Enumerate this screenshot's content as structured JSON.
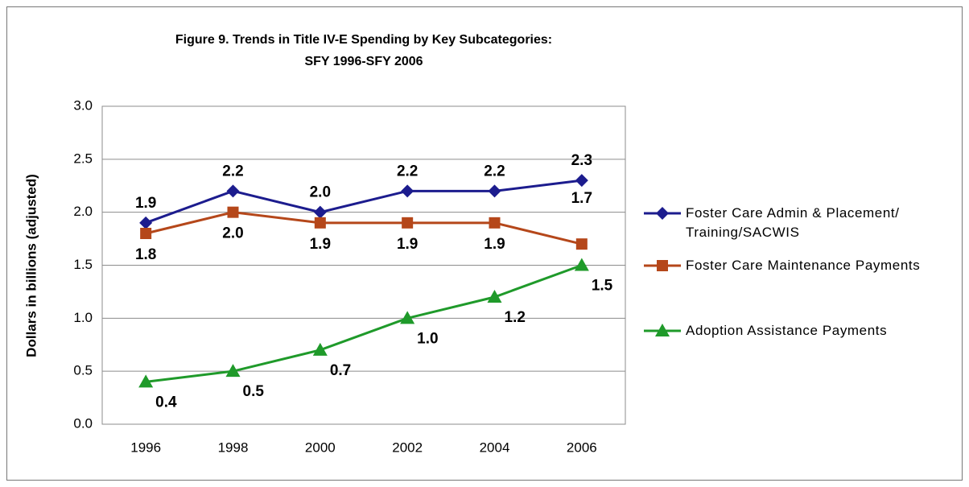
{
  "chart_data": {
    "type": "line",
    "title": [
      "Figure 9. Trends in Title IV-E Spending by Key Subcategories:",
      "SFY 1996-SFY 2006"
    ],
    "y_label": "Dollars in billions (adjusted)",
    "categories": [
      "1996",
      "1998",
      "2000",
      "2002",
      "2004",
      "2006"
    ],
    "series": [
      {
        "name": "Foster Care Admin & Placement/ Training/SACWIS",
        "color": "#1c1c8e",
        "marker": "diamond",
        "values": [
          1.9,
          2.2,
          2.0,
          2.2,
          2.2,
          2.3
        ],
        "value_labels": [
          "1.9",
          "2.2",
          "2.0",
          "2.2",
          "2.2",
          "2.3"
        ]
      },
      {
        "name": "Foster Care Maintenance Payments",
        "color": "#b5471a",
        "marker": "square",
        "values": [
          1.8,
          2.0,
          1.9,
          1.9,
          1.9,
          1.7
        ],
        "value_labels": [
          "1.8",
          "2.0",
          "1.9",
          "1.9",
          "1.9",
          "1.7"
        ]
      },
      {
        "name": "Adoption Assistance Payments",
        "color": "#1f9a2a",
        "marker": "triangle",
        "values": [
          0.4,
          0.5,
          0.7,
          1.0,
          1.2,
          1.5
        ],
        "value_labels": [
          "0.4",
          "0.5",
          "0.7",
          "1.0",
          "1.2",
          "1.5"
        ]
      }
    ],
    "ylim": [
      0,
      3
    ],
    "yticks": [
      {
        "value": 0,
        "label": "0.0"
      },
      0.5,
      {
        "value": 1,
        "label": "1.0"
      },
      1.5,
      {
        "value": 2,
        "label": "2.0"
      },
      2.5,
      {
        "value": 3,
        "label": "3.0"
      }
    ],
    "grid": true,
    "legend": "right"
  }
}
